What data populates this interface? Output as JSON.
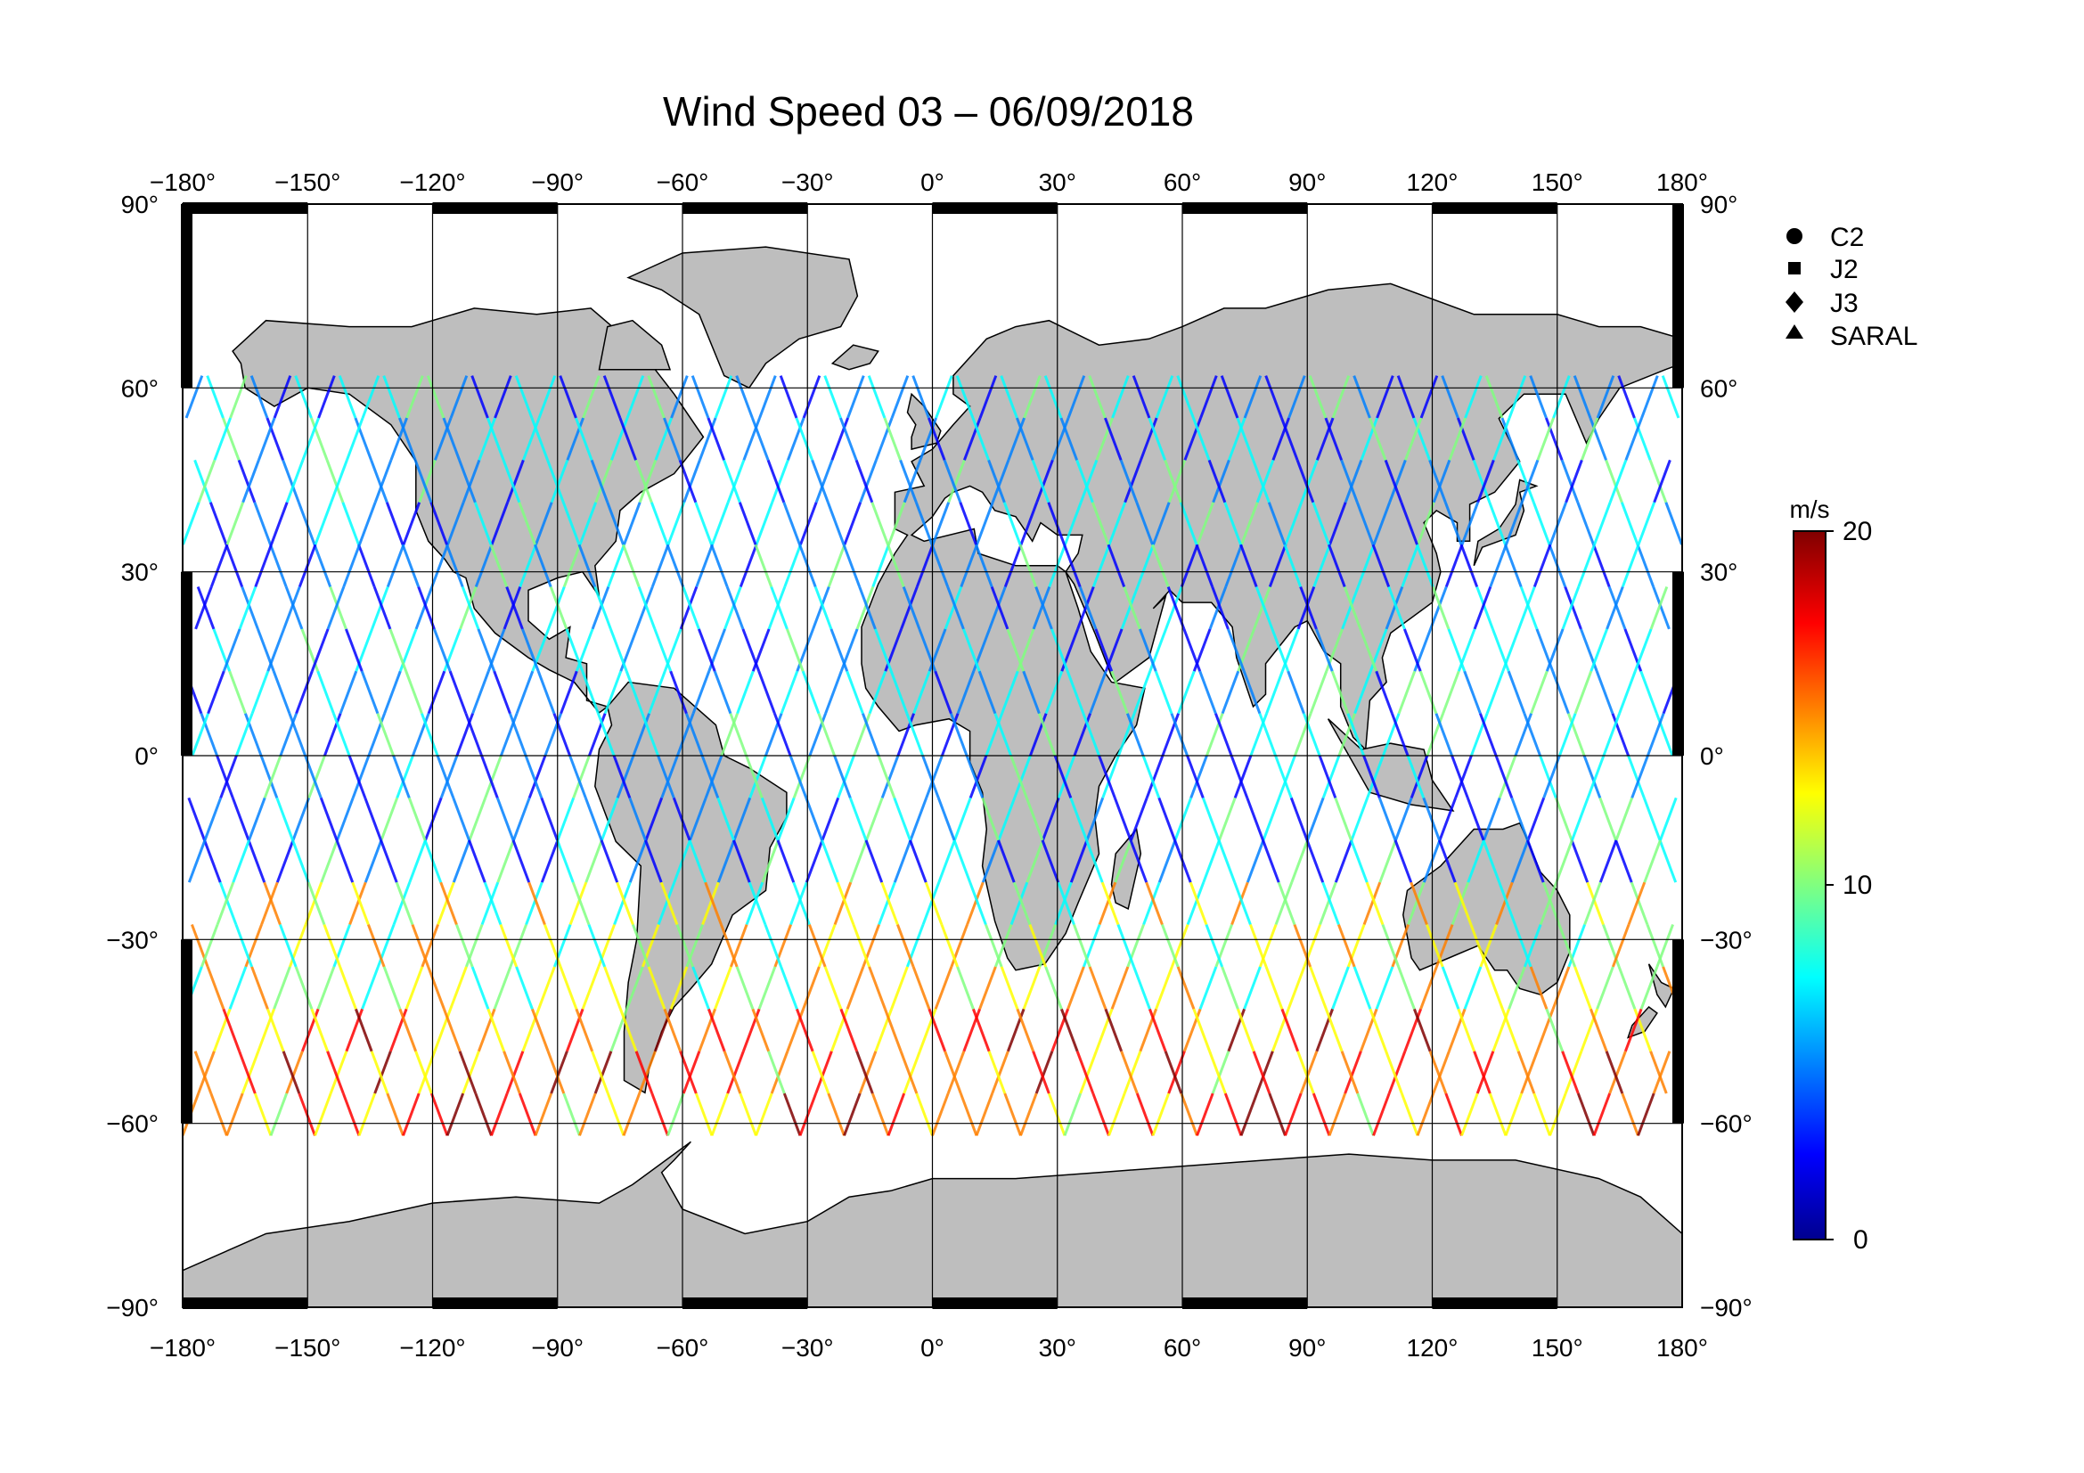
{
  "title": "Wind Speed 03 – 06/09/2018",
  "degree_symbol": "°",
  "axes": {
    "lon_ticks": [
      "−180",
      "−150",
      "−120",
      "−90",
      "−60",
      "−30",
      "0",
      "30",
      "60",
      "90",
      "120",
      "150",
      "180"
    ],
    "lon_values": [
      -180,
      -150,
      -120,
      -90,
      -60,
      -30,
      0,
      30,
      60,
      90,
      120,
      150,
      180
    ],
    "lat_ticks": [
      "90",
      "60",
      "30",
      "0",
      "−30",
      "−60",
      "−90"
    ],
    "lat_values": [
      90,
      60,
      30,
      0,
      -30,
      -60,
      -90
    ],
    "lon_range": [
      -180,
      180
    ],
    "lat_range": [
      -90,
      90
    ],
    "grid": true
  },
  "legend": {
    "placement": "top-right",
    "items": [
      {
        "label": "C2",
        "marker": "circle"
      },
      {
        "label": "J2",
        "marker": "square"
      },
      {
        "label": "J3",
        "marker": "diamond"
      },
      {
        "label": "SARAL",
        "marker": "triangle"
      }
    ]
  },
  "colorbar": {
    "unit": "m/s",
    "min": 0,
    "max": 20,
    "tick_labels": [
      "20",
      "10",
      "0"
    ],
    "tick_values": [
      20,
      10,
      0
    ],
    "colormap": [
      "#00008f",
      "#0000ff",
      "#0080ff",
      "#00ffff",
      "#80ff80",
      "#ffff00",
      "#ff8000",
      "#ff0000",
      "#800000"
    ]
  },
  "colors": {
    "land": "#bebebe",
    "ocean": "#ffffff",
    "coast": "#000000",
    "grid": "#000000"
  }
}
